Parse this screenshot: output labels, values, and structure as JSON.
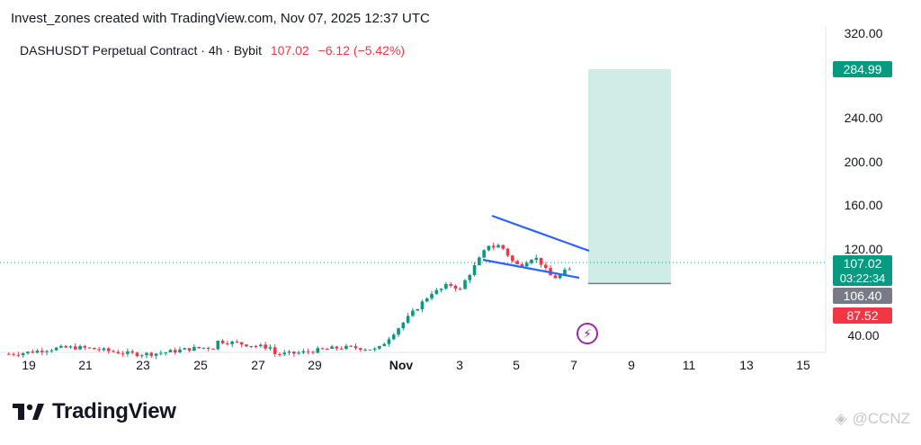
{
  "header": {
    "text": "Invest_zones created with TradingView.com, Nov 07, 2025 12:37 UTC"
  },
  "legend": {
    "symbol": "DASHUSDT Perpetual Contract · 4h · Bybit",
    "price": "107.02",
    "change": "−6.12 (−5.42%)"
  },
  "icons": {
    "alert": "lightning-bolt-icon",
    "logo": "tradingview-logo-icon",
    "watermark": "binance-square-icon"
  },
  "branding": {
    "logo_text": "TradingView",
    "watermark_text": "@CCNZ"
  },
  "colors": {
    "up": "#089981",
    "down": "#f23645",
    "wedge": "#2962ff",
    "target_fill": "#cfece6",
    "stop_fill": "#fbd7dc"
  },
  "chart_data": {
    "type": "candlestick",
    "title": "DASHUSDT Perpetual Contract · 4h · Bybit",
    "x_ticks": [
      "19",
      "21",
      "23",
      "25",
      "27",
      "29",
      "Nov",
      "3",
      "5",
      "7",
      "9",
      "11",
      "13",
      "15"
    ],
    "y_ticks": [
      "320.00",
      "240.00",
      "200.00",
      "160.00",
      "120.00",
      "40.00"
    ],
    "ylim": [
      30,
      330
    ],
    "current_price": 107.02,
    "countdown": "03:22:34",
    "price_labels": [
      {
        "value": 284.99,
        "text": "284.99",
        "color": "#089981"
      },
      {
        "value": 107.02,
        "text": "107.02",
        "color": "#089981"
      },
      {
        "value": 106.4,
        "text": "106.40",
        "color": "#787b86"
      },
      {
        "value": 87.52,
        "text": "87.52",
        "color": "#f23645"
      }
    ],
    "position": {
      "entry": 106.4,
      "target": 284.99,
      "stop": 87.52
    },
    "wedge": {
      "upper": [
        {
          "day": 4.2,
          "price": 151
        },
        {
          "day": 7.6,
          "price": 119
        }
      ],
      "lower": [
        {
          "day": 3.8,
          "price": 112
        },
        {
          "day": 7.2,
          "price": 94
        }
      ]
    },
    "candles_summary": "4h candles from Oct 18 to Nov 7; price ~45 until Oct 31, rally to ~150 on Nov 4, falling wedge to 107"
  }
}
